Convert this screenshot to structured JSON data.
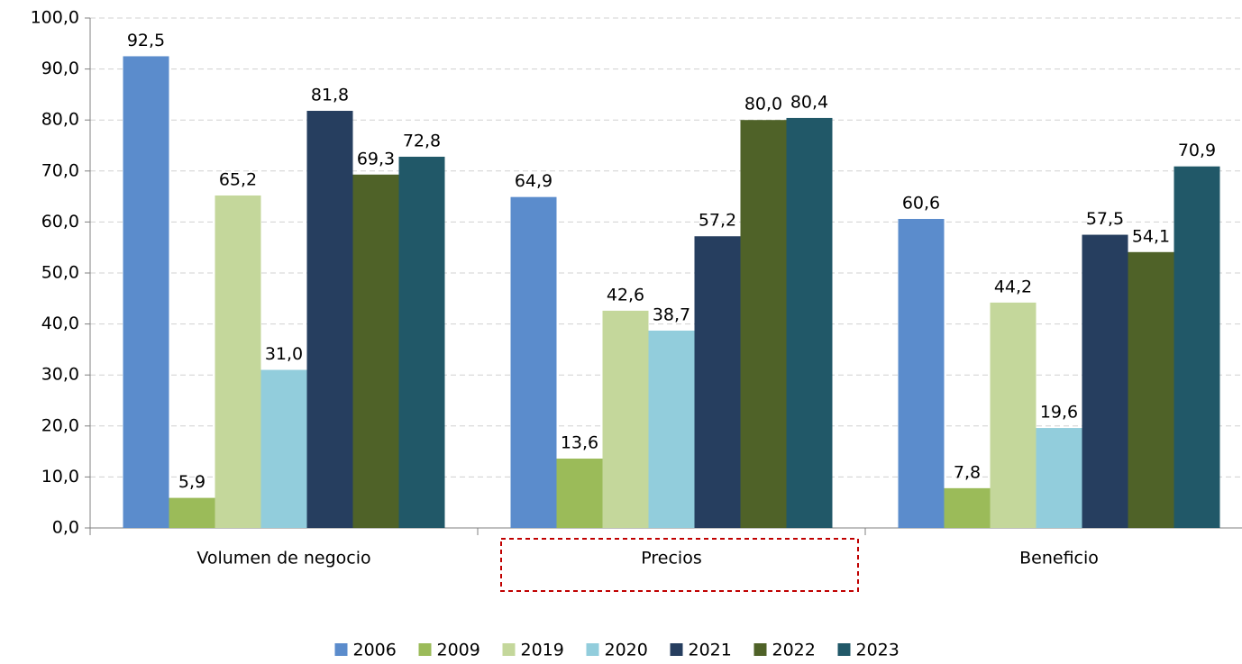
{
  "chart_data": {
    "type": "bar",
    "categories": [
      "Volumen de negocio",
      "Precios",
      "Beneficio"
    ],
    "series": [
      {
        "name": "2006",
        "color": "#5b8ccc",
        "values": [
          92.5,
          64.9,
          60.6
        ],
        "value_labels": [
          "92,5",
          "64,9",
          "60,6"
        ]
      },
      {
        "name": "2009",
        "color": "#9bbb59",
        "values": [
          5.9,
          13.6,
          7.8
        ],
        "value_labels": [
          "5,9",
          "13,6",
          "7,8"
        ]
      },
      {
        "name": "2019",
        "color": "#c4d79b",
        "values": [
          65.2,
          42.6,
          44.2
        ],
        "value_labels": [
          "65,2",
          "42,6",
          "44,2"
        ]
      },
      {
        "name": "2020",
        "color": "#92cddc",
        "values": [
          31.0,
          38.7,
          19.6
        ],
        "value_labels": [
          "31,0",
          "38,7",
          "19,6"
        ]
      },
      {
        "name": "2021",
        "color": "#263e5f",
        "values": [
          81.8,
          57.2,
          57.5
        ],
        "value_labels": [
          "81,8",
          "57,2",
          "57,5"
        ]
      },
      {
        "name": "2022",
        "color": "#4f6228",
        "values": [
          69.3,
          80.0,
          54.1
        ],
        "value_labels": [
          "69,3",
          "80,0",
          "54,1"
        ]
      },
      {
        "name": "2023",
        "color": "#215868",
        "values": [
          72.8,
          80.4,
          70.9
        ],
        "value_labels": [
          "72,8",
          "80,4",
          "70,9"
        ]
      }
    ],
    "ylim": [
      0,
      100
    ],
    "yticks": [
      {
        "value": 0,
        "label": "0,0"
      },
      {
        "value": 10,
        "label": "10,0"
      },
      {
        "value": 20,
        "label": "20,0"
      },
      {
        "value": 30,
        "label": "30,0"
      },
      {
        "value": 40,
        "label": "40,0"
      },
      {
        "value": 50,
        "label": "50,0"
      },
      {
        "value": 60,
        "label": "60,0"
      },
      {
        "value": 70,
        "label": "70,0"
      },
      {
        "value": 80,
        "label": "80,0"
      },
      {
        "value": 90,
        "label": "90,0"
      },
      {
        "value": 100,
        "label": "100,0"
      }
    ],
    "grid": true,
    "legend": "bottom"
  }
}
